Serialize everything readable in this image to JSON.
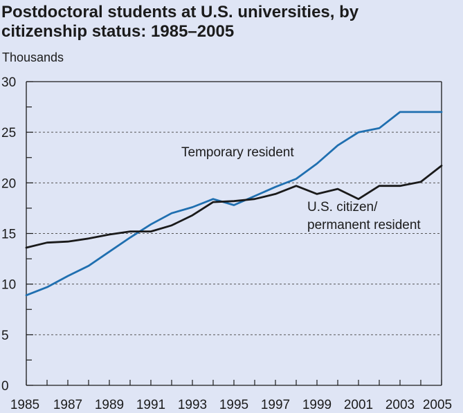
{
  "header": {
    "title_line1": "Postdoctoral students at U.S. universities, by",
    "title_line2": "citizenship status: 1985–2005",
    "unit_label": "Thousands"
  },
  "colors": {
    "background": "#dfe5f5",
    "temporary_resident": "#1f6fb0",
    "us_citizen": "#1a1a1a",
    "grid": "#555555"
  },
  "chart_data": {
    "type": "line",
    "title": "Postdoctoral students at U.S. universities, by citizenship status: 1985–2005",
    "ylabel": "Thousands",
    "xlabel": "",
    "ylim": [
      0,
      30
    ],
    "xlim": [
      1985,
      2005
    ],
    "yticks": [
      0,
      5,
      10,
      15,
      20,
      25,
      30
    ],
    "xticks": [
      1985,
      1987,
      1989,
      1991,
      1993,
      1995,
      1997,
      1999,
      2001,
      2003,
      2005
    ],
    "grid": "dashed horizontal",
    "x": [
      1985,
      1986,
      1987,
      1988,
      1989,
      1990,
      1991,
      1992,
      1993,
      1994,
      1995,
      1996,
      1997,
      1998,
      1999,
      2000,
      2001,
      2002,
      2003,
      2004,
      2005
    ],
    "series": [
      {
        "name": "Temporary resident",
        "annotation_lines": [
          "Temporary resident"
        ],
        "color": "#1f6fb0",
        "values": [
          8.9,
          9.7,
          10.8,
          11.8,
          13.2,
          14.6,
          15.9,
          17.0,
          17.6,
          18.4,
          17.8,
          18.7,
          19.6,
          20.4,
          21.9,
          23.7,
          25.0,
          25.4,
          27.0,
          27.0,
          27.0
        ]
      },
      {
        "name": "U.S. citizen/ permanent resident",
        "annotation_lines": [
          "U.S. citizen/",
          "permanent resident"
        ],
        "color": "#1a1a1a",
        "values": [
          13.6,
          14.1,
          14.2,
          14.5,
          14.9,
          15.2,
          15.2,
          15.8,
          16.8,
          18.1,
          18.2,
          18.4,
          18.9,
          19.7,
          18.9,
          19.4,
          18.4,
          19.7,
          19.7,
          20.1,
          21.7
        ]
      }
    ]
  }
}
